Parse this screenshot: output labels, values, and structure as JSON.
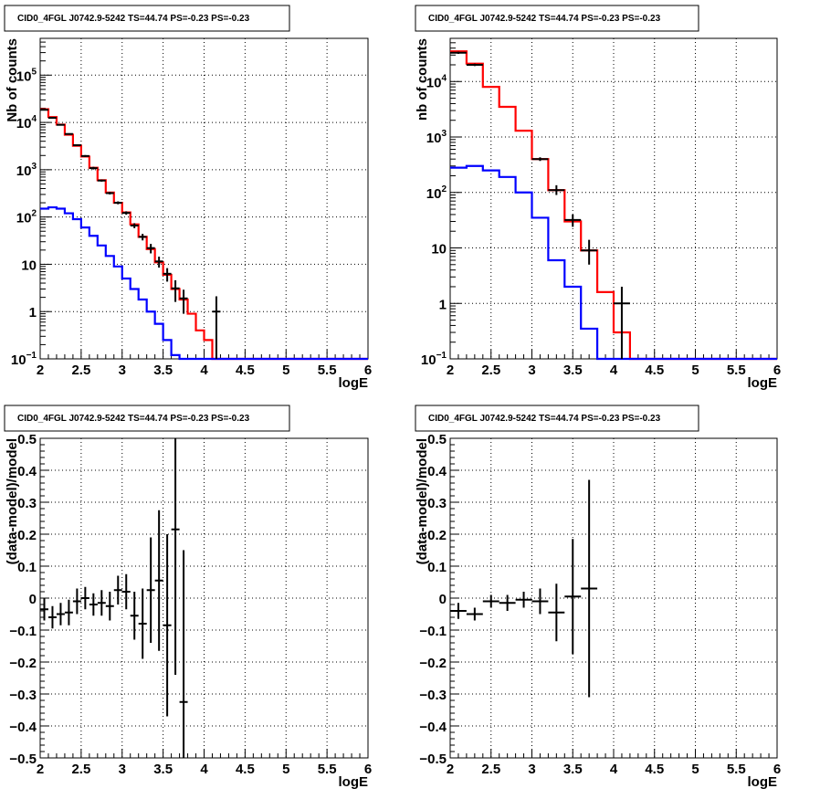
{
  "chart_data": [
    {
      "type": "line",
      "title": "CID0_4FGL J0742.9-5242 TS=44.74 PS=-0.23 PS=-0.23",
      "xlabel": "logE",
      "ylabel": "Nb of counts",
      "xlim": [
        2,
        6
      ],
      "ylim": [
        0.1,
        600000
      ],
      "y_scale": "log",
      "grid": true,
      "x_ticks": [
        "2",
        "2.5",
        "3",
        "3.5",
        "4",
        "4.5",
        "5",
        "5.5",
        "6"
      ],
      "y_ticks": [
        {
          "v": 0.1,
          "t": "10",
          "exp": "−1"
        },
        {
          "v": 1,
          "t": "1",
          "exp": ""
        },
        {
          "v": 10,
          "t": "10",
          "exp": ""
        },
        {
          "v": 100,
          "t": "10",
          "exp": "2"
        },
        {
          "v": 1000,
          "t": "10",
          "exp": "3"
        },
        {
          "v": 10000,
          "t": "10",
          "exp": "4"
        },
        {
          "v": 100000,
          "t": "10",
          "exp": "5"
        }
      ],
      "bin_edges": [
        2.0,
        2.1,
        2.2,
        2.3,
        2.4,
        2.5,
        2.6,
        2.7,
        2.8,
        2.9,
        3.0,
        3.1,
        3.2,
        3.3,
        3.4,
        3.5,
        3.6,
        3.7,
        3.8,
        3.9,
        4.0,
        4.1,
        4.2,
        4.3,
        4.4,
        4.5,
        4.6,
        4.7,
        4.8,
        4.9,
        5.0,
        5.1,
        5.2,
        5.3,
        5.4,
        5.5,
        5.6,
        5.7,
        5.8,
        5.9,
        6.0
      ],
      "series": [
        {
          "color": "#ff0000",
          "kind": "hist",
          "values": [
            19000,
            13000,
            9000,
            5500,
            3200,
            1900,
            1100,
            600,
            330,
            200,
            125,
            70,
            38,
            21,
            11,
            6,
            3,
            1.8,
            0.9,
            0.4,
            0.25,
            0.1
          ]
        },
        {
          "color": "#0000ff",
          "kind": "hist",
          "values": [
            150,
            160,
            150,
            120,
            90,
            60,
            40,
            25,
            15,
            9,
            5,
            3,
            1.8,
            1,
            0.55,
            0.25,
            0.12,
            0.1
          ]
        },
        {
          "color": "#000000",
          "kind": "points",
          "x": [
            2.05,
            2.15,
            2.25,
            2.35,
            2.45,
            2.55,
            2.65,
            2.75,
            2.85,
            2.95,
            3.05,
            3.15,
            3.25,
            3.35,
            3.45,
            3.55,
            3.65,
            3.75,
            4.15
          ],
          "y": [
            18500,
            12500,
            8900,
            5700,
            3300,
            1950,
            1080,
            590,
            320,
            200,
            122,
            66,
            38,
            22,
            11.5,
            6.3,
            3.1,
            1.9,
            1.0
          ],
          "ylo": [
            17900,
            12000,
            8600,
            5500,
            3180,
            1860,
            1010,
            560,
            300,
            186,
            112,
            58,
            32,
            17,
            8.5,
            4.3,
            1.6,
            0.9,
            0.1
          ],
          "yhi": [
            19100,
            13000,
            9200,
            5900,
            3420,
            2040,
            1150,
            620,
            340,
            214,
            132,
            74,
            44,
            27,
            14.5,
            8.3,
            4.6,
            2.9,
            2.1
          ]
        }
      ]
    },
    {
      "type": "line",
      "title": "CID0_4FGL J0742.9-5242 TS=44.74 PS=-0.23 PS=-0.23",
      "xlabel": "logE",
      "ylabel": "nb of counts",
      "xlim": [
        2,
        6
      ],
      "ylim": [
        0.1,
        60000
      ],
      "y_scale": "log",
      "grid": true,
      "x_ticks": [
        "2",
        "2.5",
        "3",
        "3.5",
        "4",
        "4.5",
        "5",
        "5.5",
        "6"
      ],
      "y_ticks": [
        {
          "v": 0.1,
          "t": "10",
          "exp": "−1"
        },
        {
          "v": 1,
          "t": "1",
          "exp": ""
        },
        {
          "v": 10,
          "t": "10",
          "exp": ""
        },
        {
          "v": 100,
          "t": "10",
          "exp": "2"
        },
        {
          "v": 1000,
          "t": "10",
          "exp": "3"
        },
        {
          "v": 10000,
          "t": "10",
          "exp": "4"
        }
      ],
      "bin_edges": [
        2.0,
        2.2,
        2.4,
        2.6,
        2.8,
        3.0,
        3.2,
        3.4,
        3.6,
        3.8,
        4.0,
        4.2,
        4.4,
        4.6,
        4.8,
        5.0,
        5.2,
        5.4,
        5.6,
        5.8,
        6.0
      ],
      "series": [
        {
          "color": "#ff0000",
          "kind": "hist",
          "values": [
            35000,
            21000,
            8000,
            3500,
            1300,
            400,
            110,
            30,
            9,
            1.6,
            0.3,
            0.1
          ]
        },
        {
          "color": "#0000ff",
          "kind": "hist",
          "values": [
            280,
            300,
            250,
            190,
            100,
            35,
            6,
            2,
            0.35,
            0.1
          ]
        },
        {
          "color": "#000000",
          "kind": "points",
          "x": [
            2.1,
            2.3,
            3.1,
            3.3,
            3.5,
            3.7,
            4.1
          ],
          "y": [
            33000,
            20000,
            400,
            110,
            32,
            9,
            1
          ],
          "ylo": [
            31500,
            19000,
            370,
            90,
            24,
            5,
            0.1
          ],
          "yhi": [
            34500,
            21000,
            430,
            135,
            40,
            14,
            2
          ]
        }
      ]
    },
    {
      "type": "scatter",
      "title": "CID0_4FGL J0742.9-5242 TS=44.74 PS=-0.23 PS=-0.23",
      "xlabel": "logE",
      "ylabel": "(data-model)/model",
      "xlim": [
        2,
        6
      ],
      "ylim": [
        -0.5,
        0.5
      ],
      "grid": true,
      "x_ticks": [
        "2",
        "2.5",
        "3",
        "3.5",
        "4",
        "4.5",
        "5",
        "5.5",
        "6"
      ],
      "y_ticks": [
        "−0.5",
        "−0.4",
        "−0.3",
        "−0.2",
        "−0.1",
        "0",
        "0.1",
        "0.2",
        "0.3",
        "0.4",
        "0.5"
      ],
      "points": {
        "x": [
          2.05,
          2.15,
          2.25,
          2.35,
          2.45,
          2.55,
          2.65,
          2.75,
          2.85,
          2.95,
          3.05,
          3.15,
          3.25,
          3.35,
          3.45,
          3.55,
          3.65,
          3.75
        ],
        "y": [
          -0.035,
          -0.06,
          -0.05,
          -0.045,
          -0.01,
          0.0,
          -0.02,
          -0.015,
          -0.025,
          0.025,
          0.02,
          -0.055,
          -0.08,
          0.025,
          0.055,
          -0.085,
          0.215,
          -0.325
        ],
        "xerr": 0.05,
        "yerr": [
          0.035,
          0.035,
          0.035,
          0.04,
          0.04,
          0.035,
          0.035,
          0.04,
          0.045,
          0.045,
          0.055,
          0.075,
          0.11,
          0.165,
          0.22,
          0.285,
          0.455,
          0.475
        ]
      }
    },
    {
      "type": "scatter",
      "title": "CID0_4FGL J0742.9-5242 TS=44.74 PS=-0.23 PS=-0.23",
      "xlabel": "logE",
      "ylabel": "(data-model)/model",
      "xlim": [
        2,
        6
      ],
      "ylim": [
        -0.5,
        0.5
      ],
      "grid": true,
      "x_ticks": [
        "2",
        "2.5",
        "3",
        "3.5",
        "4",
        "4.5",
        "5",
        "5.5",
        "6"
      ],
      "y_ticks": [
        "−0.5",
        "−0.4",
        "−0.3",
        "−0.2",
        "−0.1",
        "0",
        "0.1",
        "0.2",
        "0.3",
        "0.4",
        "0.5"
      ],
      "points": {
        "x": [
          2.1,
          2.3,
          2.5,
          2.7,
          2.9,
          3.1,
          3.3,
          3.5,
          3.7
        ],
        "y": [
          -0.04,
          -0.05,
          -0.01,
          -0.015,
          -0.005,
          -0.01,
          -0.045,
          0.005,
          0.03
        ],
        "xerr": 0.1,
        "yerr": [
          0.025,
          0.02,
          0.02,
          0.025,
          0.025,
          0.04,
          0.09,
          0.18,
          0.34
        ]
      }
    }
  ]
}
